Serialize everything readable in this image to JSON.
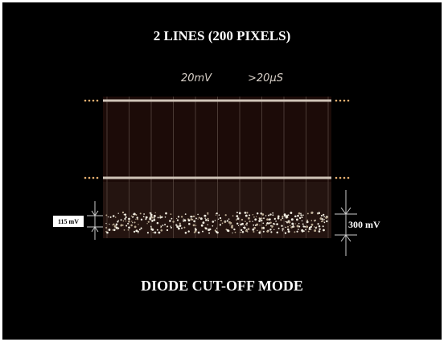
{
  "title": "2 LINES (200 PIXELS)",
  "scope": {
    "volts_per_div": "20mV",
    "time_per_div": ">20μS"
  },
  "annotations": {
    "left": "115 mV",
    "right": "300 mV"
  },
  "caption": "DIODE CUT-OFF MODE"
}
